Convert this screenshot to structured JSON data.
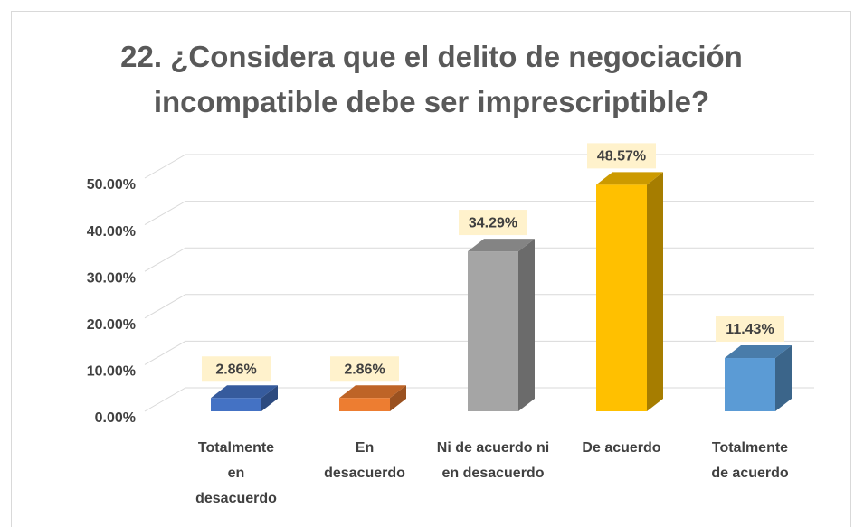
{
  "chart_data": {
    "type": "bar3d",
    "title": "22. ¿Considera que el delito de negociación incompatible debe ser imprescriptible?",
    "categories": [
      "Totalmente en desacuerdo",
      "En desacuerdo",
      "Ni de acuerdo ni en desacuerdo",
      "De acuerdo",
      "Totalmente de acuerdo"
    ],
    "values": [
      2.86,
      2.86,
      34.29,
      48.57,
      11.43
    ],
    "value_labels": [
      "2.86%",
      "2.86%",
      "34.29%",
      "48.57%",
      "11.43%"
    ],
    "colors": [
      "#4472c4",
      "#ed7d31",
      "#a5a5a5",
      "#ffc000",
      "#5b9bd5"
    ],
    "ylim": [
      0,
      50
    ],
    "yticks": [
      {
        "value": 0,
        "label": "0.00%"
      },
      {
        "value": 10,
        "label": "10.00%"
      },
      {
        "value": 20,
        "label": "20.00%"
      },
      {
        "value": 30,
        "label": "30.00%"
      },
      {
        "value": 40,
        "label": "40.00%"
      },
      {
        "value": 50,
        "label": "50.00%"
      }
    ],
    "grid": true
  }
}
